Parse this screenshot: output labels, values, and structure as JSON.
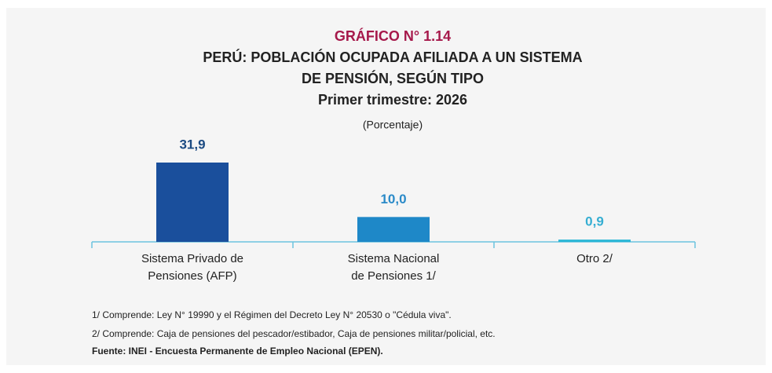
{
  "chart_data": {
    "type": "bar",
    "title": "GRÁFICO N° 1.14",
    "subtitle": [
      "PERÚ: POBLACIÓN OCUPADA AFILIADA A UN SISTEMA",
      "DE PENSIÓN, SEGÚN TIPO",
      "Primer trimestre: 2026"
    ],
    "unit_label": "(Porcentaje)",
    "categories": [
      [
        "Sistema Privado de",
        "Pensiones (AFP)"
      ],
      [
        "Sistema Nacional",
        "de Pensiones 1/"
      ],
      [
        "Otro 2/"
      ]
    ],
    "values": [
      31.9,
      10.0,
      0.9
    ],
    "value_labels": [
      "31,9",
      "10,0",
      "0,9"
    ],
    "colors": [
      "#1a4f9c",
      "#1e88c8",
      "#29b6d6"
    ],
    "label_colors": [
      "#1b4a82",
      "#2a8ac8",
      "#35aed2"
    ],
    "notes": [
      "1/ Comprende: Ley N° 19990 y el Régimen del Decreto Ley N° 20530 o \"Cédula viva\".",
      "2/ Comprende: Caja de pensiones del pescador/estibador, Caja de pensiones militar/policial, etc."
    ],
    "source": "Fuente: INEI - Encuesta Permanente de Empleo Nacional (EPEN)."
  }
}
